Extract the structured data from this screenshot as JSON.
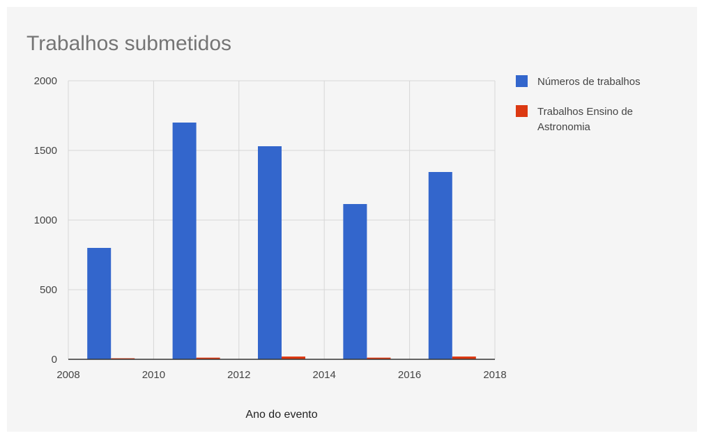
{
  "chart_data": {
    "type": "bar",
    "title": "Trabalhos submetidos",
    "xlabel": "Ano do evento",
    "ylabel": "",
    "ylim": [
      0,
      2000
    ],
    "yticks": [
      0,
      500,
      1000,
      1500,
      2000
    ],
    "xlim": [
      2008,
      2018
    ],
    "xticks": [
      2008,
      2010,
      2012,
      2014,
      2016,
      2018
    ],
    "grid": true,
    "legend_position": "right",
    "categories": [
      2009,
      2011,
      2013,
      2015,
      2017
    ],
    "series": [
      {
        "name": "Números de trabalhos",
        "color": "#3366cc",
        "values": [
          800,
          1700,
          1530,
          1115,
          1345
        ]
      },
      {
        "name": "Trabalhos Ensino de Astronomia",
        "color": "#dc3912",
        "values": [
          3,
          12,
          20,
          12,
          20
        ]
      }
    ]
  }
}
